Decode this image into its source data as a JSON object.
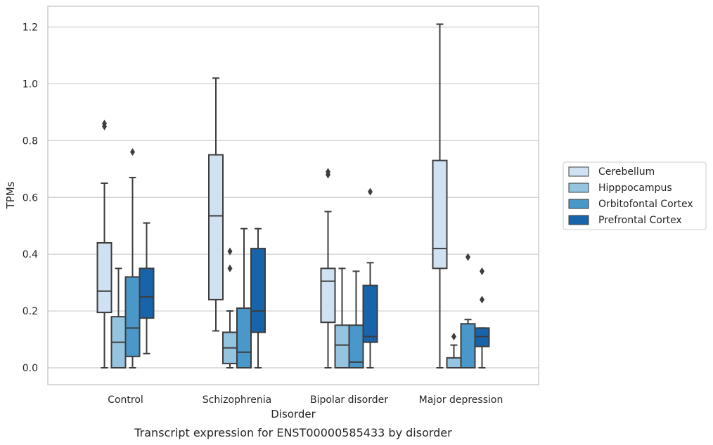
{
  "figure": {
    "caption": "Transcript expression for ENST00000585433 by disorder"
  },
  "chart_data": {
    "type": "box",
    "xlabel": "Disorder",
    "ylabel": "TPMs",
    "ylim": [
      -0.06,
      1.27
    ],
    "yticks": [
      "0.0",
      "0.2",
      "0.4",
      "0.6",
      "0.8",
      "1.0",
      "1.2"
    ],
    "ytick_values": [
      0,
      0.2,
      0.4,
      0.6,
      0.8,
      1.0,
      1.2
    ],
    "grid": true,
    "legend_position": "right",
    "categories": [
      "Control",
      "Schizophrenia",
      "Bipolar disorder",
      "Major depression"
    ],
    "series": [
      {
        "name": "Cerebellum",
        "color": "#d0e1f2",
        "boxes": [
          {
            "min": 0.0,
            "q1": 0.195,
            "median": 0.27,
            "q3": 0.44,
            "max": 0.65,
            "outliers": [
              0.85,
              0.86
            ]
          },
          {
            "min": 0.13,
            "q1": 0.24,
            "median": 0.535,
            "q3": 0.75,
            "max": 1.02,
            "outliers": []
          },
          {
            "min": 0.0,
            "q1": 0.16,
            "median": 0.305,
            "q3": 0.35,
            "max": 0.55,
            "outliers": [
              0.68,
              0.69
            ]
          },
          {
            "min": 0.0,
            "q1": 0.35,
            "median": 0.42,
            "q3": 0.73,
            "max": 1.21,
            "outliers": []
          }
        ]
      },
      {
        "name": "Hipppocampus",
        "color": "#94c4df",
        "boxes": [
          {
            "min": 0.0,
            "q1": 0.0,
            "median": 0.09,
            "q3": 0.18,
            "max": 0.35,
            "outliers": []
          },
          {
            "min": 0.0,
            "q1": 0.015,
            "median": 0.07,
            "q3": 0.125,
            "max": 0.2,
            "outliers": [
              0.35,
              0.41
            ]
          },
          {
            "min": 0.0,
            "q1": 0.0,
            "median": 0.08,
            "q3": 0.15,
            "max": 0.35,
            "outliers": []
          },
          {
            "min": 0.0,
            "q1": 0.0,
            "median": 0.0,
            "q3": 0.035,
            "max": 0.08,
            "outliers": [
              0.11
            ]
          }
        ]
      },
      {
        "name": "Orbitofontal Cortex",
        "color": "#4a98c9",
        "boxes": [
          {
            "min": 0.0,
            "q1": 0.04,
            "median": 0.14,
            "q3": 0.32,
            "max": 0.67,
            "outliers": [
              0.76
            ]
          },
          {
            "min": 0.0,
            "q1": 0.0,
            "median": 0.055,
            "q3": 0.21,
            "max": 0.49,
            "outliers": []
          },
          {
            "min": 0.0,
            "q1": 0.0,
            "median": 0.02,
            "q3": 0.15,
            "max": 0.34,
            "outliers": []
          },
          {
            "min": 0.0,
            "q1": 0.0,
            "median": 0.0,
            "q3": 0.155,
            "max": 0.17,
            "outliers": [
              0.39
            ]
          }
        ]
      },
      {
        "name": "Prefrontal Cortex",
        "color": "#1764ab",
        "boxes": [
          {
            "min": 0.05,
            "q1": 0.175,
            "median": 0.25,
            "q3": 0.35,
            "max": 0.51,
            "outliers": []
          },
          {
            "min": 0.0,
            "q1": 0.125,
            "median": 0.2,
            "q3": 0.42,
            "max": 0.49,
            "outliers": []
          },
          {
            "min": 0.0,
            "q1": 0.09,
            "median": 0.11,
            "q3": 0.29,
            "max": 0.37,
            "outliers": [
              0.62
            ]
          },
          {
            "min": 0.0,
            "q1": 0.075,
            "median": 0.11,
            "q3": 0.14,
            "max": 0.14,
            "outliers": [
              0.24,
              0.34
            ]
          }
        ]
      }
    ]
  }
}
